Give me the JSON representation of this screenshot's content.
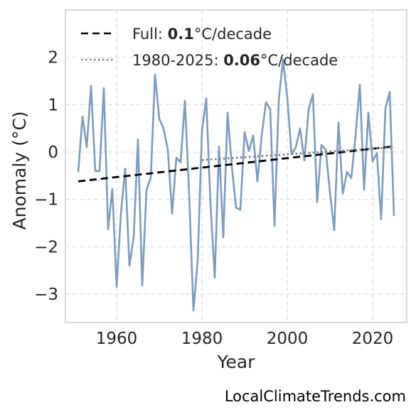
{
  "chart_data": {
    "type": "line",
    "xlabel": "Year",
    "ylabel": "Anomaly (°C)",
    "xlim": [
      1948,
      2028
    ],
    "ylim": [
      -3.6,
      3.0
    ],
    "x_ticks": [
      1960,
      1980,
      2000,
      2020
    ],
    "y_ticks": [
      -3,
      -2,
      -1,
      0,
      1,
      2
    ],
    "grid": true,
    "legend_position": "top-left",
    "series": [
      {
        "style": "solid",
        "color": "#7b9bbf",
        "x": [
          1951,
          1952,
          1953,
          1954,
          1955,
          1956,
          1957,
          1958,
          1959,
          1960,
          1961,
          1962,
          1963,
          1964,
          1965,
          1966,
          1967,
          1968,
          1969,
          1970,
          1971,
          1972,
          1973,
          1974,
          1975,
          1976,
          1977,
          1978,
          1979,
          1980,
          1981,
          1982,
          1983,
          1984,
          1985,
          1986,
          1987,
          1988,
          1989,
          1990,
          1991,
          1992,
          1993,
          1994,
          1995,
          1996,
          1997,
          1998,
          1999,
          2000,
          2001,
          2002,
          2003,
          2004,
          2005,
          2006,
          2007,
          2008,
          2009,
          2010,
          2011,
          2012,
          2013,
          2014,
          2015,
          2016,
          2017,
          2018,
          2019,
          2020,
          2021,
          2022,
          2023,
          2024,
          2025
        ],
        "y": [
          -0.42,
          0.75,
          0.1,
          1.4,
          -0.4,
          -0.4,
          1.35,
          -1.63,
          -0.78,
          -2.85,
          -1.3,
          -0.35,
          -2.4,
          -1.8,
          0.27,
          -2.82,
          -0.8,
          -0.55,
          1.63,
          0.7,
          0.5,
          0.05,
          -1.3,
          -0.12,
          -0.22,
          1.08,
          -0.9,
          -3.35,
          -2.3,
          0.45,
          1.13,
          -1.1,
          -2.65,
          0.12,
          -1.8,
          0.83,
          -0.3,
          -1.18,
          -1.22,
          0.42,
          0.02,
          0.35,
          -0.62,
          0.35,
          1.05,
          0.9,
          -1.56,
          1.1,
          1.95,
          1.15,
          -0.05,
          0.1,
          0.5,
          -0.18,
          0.9,
          1.22,
          -1.06,
          0.15,
          0.05,
          -0.85,
          -1.65,
          0.62,
          -0.88,
          -0.42,
          -0.55,
          0.35,
          1.42,
          -0.8,
          0.83,
          -0.2,
          -0.02,
          -1.42,
          0.92,
          1.27,
          -1.35
        ]
      },
      {
        "name": "Full: ",
        "name_bold": "0.1",
        "name_suffix": "°C/decade",
        "style": "dashed",
        "color": "#000000",
        "x": [
          1951,
          2025
        ],
        "y": [
          -0.62,
          0.12
        ]
      },
      {
        "name": "1980-2025: ",
        "name_bold": "0.06",
        "name_suffix": "°C/decade",
        "style": "dotted",
        "color": "#808080",
        "x": [
          1980,
          2025
        ],
        "y": [
          -0.17,
          0.1
        ]
      }
    ]
  },
  "watermark": "LocalClimateTrends.com"
}
